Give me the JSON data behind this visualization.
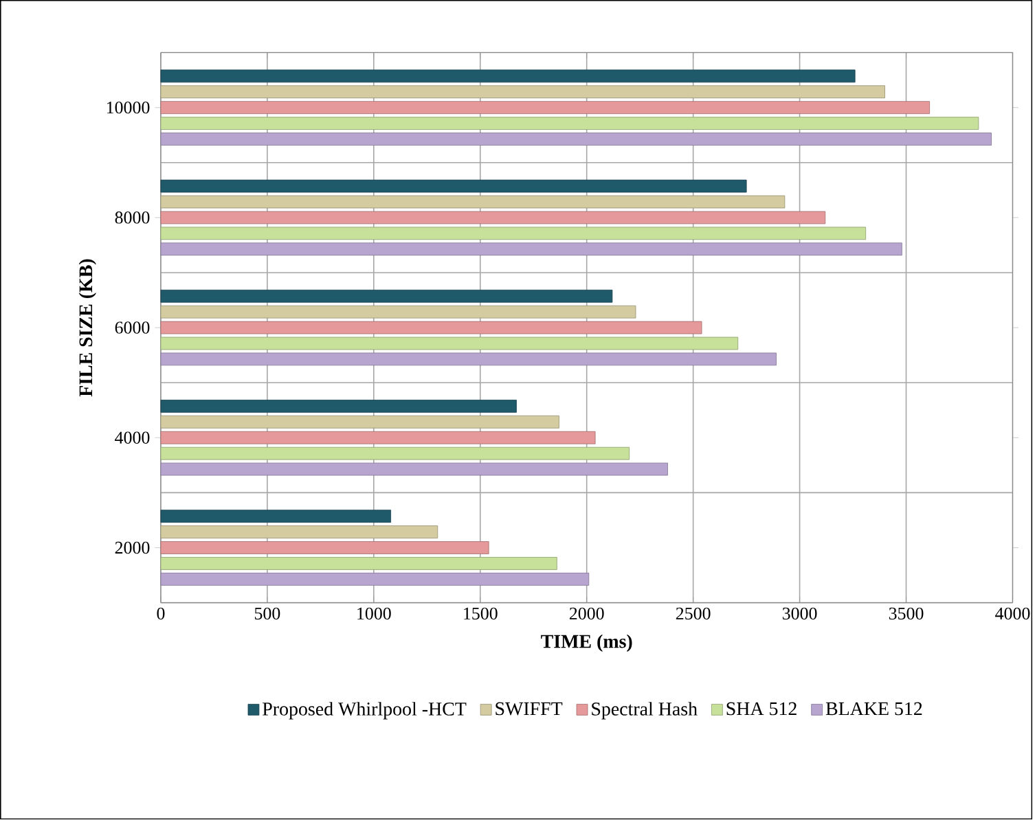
{
  "chart_data": {
    "type": "bar",
    "orientation": "horizontal",
    "xlabel": "TIME (ms)",
    "ylabel": "FILE  SIZE (KB)",
    "categories": [
      "10000",
      "8000",
      "6000",
      "4000",
      "2000"
    ],
    "series": [
      {
        "name": "Proposed Whirlpool -HCT",
        "color": "#1f5a6b",
        "values": [
          3260,
          2750,
          2120,
          1670,
          1080
        ]
      },
      {
        "name": "SWIFFT",
        "color": "#d4cba0",
        "values": [
          3400,
          2930,
          2230,
          1870,
          1300
        ]
      },
      {
        "name": "Spectral Hash",
        "color": "#e6999a",
        "values": [
          3610,
          3120,
          2540,
          2040,
          1540
        ]
      },
      {
        "name": "SHA 512",
        "color": "#c7e09a",
        "values": [
          3840,
          3310,
          2710,
          2200,
          1860
        ]
      },
      {
        "name": "BLAKE 512",
        "color": "#b7a5d0",
        "values": [
          3900,
          3480,
          2890,
          2380,
          2010
        ]
      }
    ],
    "xlim": [
      0,
      4000
    ],
    "xticks": [
      0,
      500,
      1000,
      1500,
      2000,
      2500,
      3000,
      3500,
      4000
    ],
    "grid": true,
    "legend": "bottom"
  }
}
